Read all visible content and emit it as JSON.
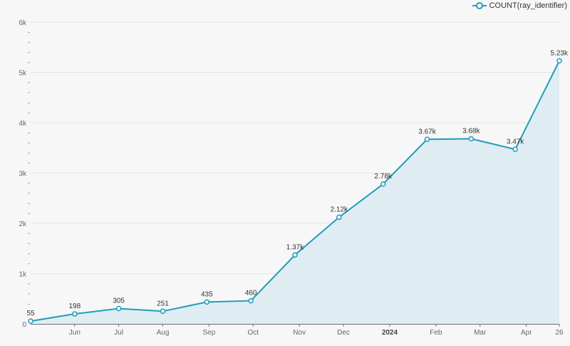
{
  "chart_data": {
    "type": "line",
    "area": true,
    "title": "",
    "xlabel": "",
    "ylabel": "",
    "legend": {
      "position": "top-right",
      "entries": [
        "COUNT(ray_identifier)"
      ]
    },
    "series": [
      {
        "name": "COUNT(ray_identifier)",
        "values": [
          55,
          198,
          305,
          251,
          435,
          460,
          1370,
          2120,
          2780,
          3670,
          3680,
          3470,
          5230
        ],
        "labels": [
          "55",
          "198",
          "305",
          "251",
          "435",
          "460",
          "1.37k",
          "2.12k",
          "2.78k",
          "3.67k",
          "3.68k",
          "3.47k",
          "5.23k"
        ]
      }
    ],
    "ylim": [
      0,
      6000
    ],
    "yticks": [
      {
        "v": 0,
        "label": "0"
      },
      {
        "v": 1000,
        "label": "1k"
      },
      {
        "v": 2000,
        "label": "2k"
      },
      {
        "v": 3000,
        "label": "3k"
      },
      {
        "v": 4000,
        "label": "4k"
      },
      {
        "v": 5000,
        "label": "5k"
      },
      {
        "v": 6000,
        "label": "6k"
      }
    ],
    "yminor_label": "-",
    "xticks": [
      {
        "i": 1.0,
        "label": "Jun"
      },
      {
        "i": 2.0,
        "label": "Jul"
      },
      {
        "i": 3.0,
        "label": "Aug"
      },
      {
        "i": 4.05,
        "label": "Sep"
      },
      {
        "i": 5.05,
        "label": "Oct"
      },
      {
        "i": 6.1,
        "label": "Nov"
      },
      {
        "i": 7.1,
        "label": "Dec"
      },
      {
        "i": 8.15,
        "label": "2024",
        "bold": true
      },
      {
        "i": 9.2,
        "label": "Feb"
      },
      {
        "i": 10.2,
        "label": "Mar"
      },
      {
        "i": 11.25,
        "label": "Apr"
      },
      {
        "i": 12,
        "label": "26"
      }
    ],
    "grid": true,
    "colors": {
      "line": "#1f9dba",
      "fill": "#dfedf2",
      "grid": "#e3e3e3",
      "text": "#666666"
    }
  }
}
